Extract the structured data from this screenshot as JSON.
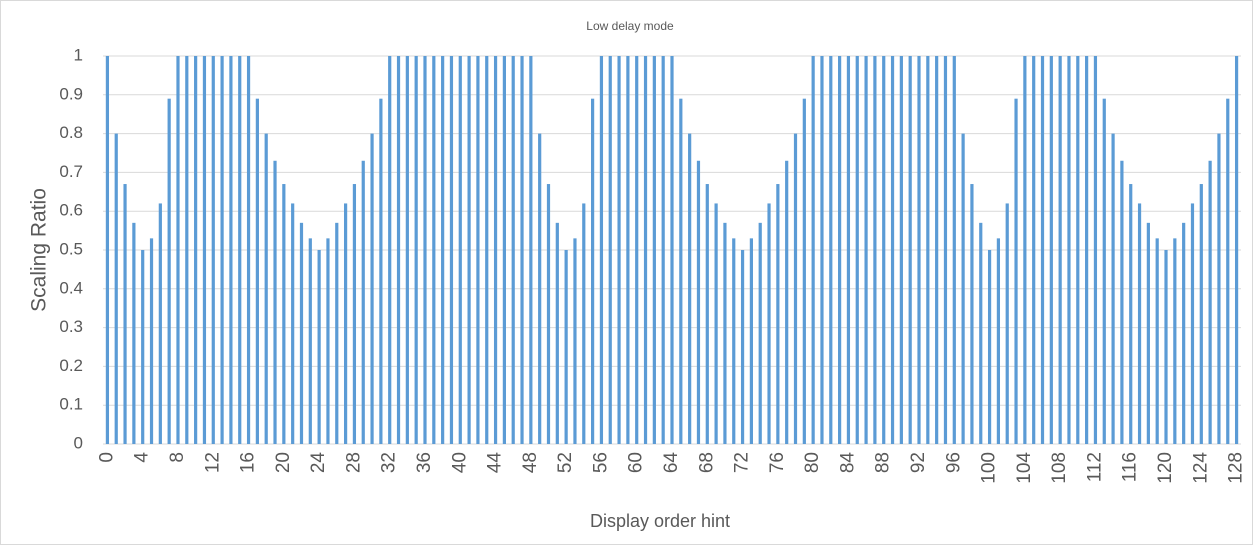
{
  "chart_data": {
    "type": "bar",
    "title": "Low delay mode",
    "x_label": "Display order hint",
    "y_label": "Scaling Ratio",
    "categories": [
      "0",
      null,
      null,
      null,
      "4",
      null,
      null,
      null,
      "8",
      null,
      null,
      null,
      "12",
      null,
      null,
      null,
      "16",
      null,
      null,
      null,
      "20",
      null,
      null,
      null,
      "24",
      null,
      null,
      null,
      "28",
      null,
      null,
      null,
      "32",
      null,
      null,
      null,
      "36",
      null,
      null,
      null,
      "40",
      null,
      null,
      null,
      "44",
      null,
      null,
      null,
      "48",
      null,
      null,
      null,
      "52",
      null,
      null,
      null,
      "56",
      null,
      null,
      null,
      "60",
      null,
      null,
      null,
      "64",
      null,
      null,
      null,
      "68",
      null,
      null,
      null,
      "72",
      null,
      null,
      null,
      "76",
      null,
      null,
      null,
      "80",
      null,
      null,
      null,
      "84",
      null,
      null,
      null,
      "88",
      null,
      null,
      null,
      "92",
      null,
      null,
      null,
      "96",
      null,
      null,
      null,
      "100",
      null,
      null,
      null,
      "104",
      null,
      null,
      null,
      "108",
      null,
      null,
      null,
      "112",
      null,
      null,
      null,
      "116",
      null,
      null,
      null,
      "120",
      null,
      null,
      null,
      "124",
      null,
      null,
      null,
      "128"
    ],
    "values": [
      1,
      0.8,
      0.67,
      0.57,
      0.5,
      0.53,
      0.62,
      0.89,
      1,
      1,
      1,
      1,
      1,
      1,
      1,
      1,
      1,
      0.89,
      0.8,
      0.73,
      0.67,
      0.62,
      0.57,
      0.53,
      0.5,
      0.53,
      0.57,
      0.62,
      0.67,
      0.73,
      0.8,
      0.89,
      1,
      1,
      1,
      1,
      1,
      1,
      1,
      1,
      1,
      1,
      1,
      1,
      1,
      1,
      1,
      1,
      1,
      0.8,
      0.67,
      0.57,
      0.5,
      0.53,
      0.62,
      0.89,
      1,
      1,
      1,
      1,
      1,
      1,
      1,
      1,
      1,
      0.89,
      0.8,
      0.73,
      0.67,
      0.62,
      0.57,
      0.53,
      0.5,
      0.53,
      0.57,
      0.62,
      0.67,
      0.73,
      0.8,
      0.89,
      1,
      1,
      1,
      1,
      1,
      1,
      1,
      1,
      1,
      1,
      1,
      1,
      1,
      1,
      1,
      1,
      1,
      0.8,
      0.67,
      0.57,
      0.5,
      0.53,
      0.62,
      0.89,
      1,
      1,
      1,
      1,
      1,
      1,
      1,
      1,
      1,
      0.89,
      0.8,
      0.73,
      0.67,
      0.62,
      0.57,
      0.53,
      0.5,
      0.53,
      0.57,
      0.62,
      0.67,
      0.73,
      0.8,
      0.89,
      1
    ],
    "color": "#5b9bd5",
    "ylim": [
      0,
      1
    ],
    "yticks": [
      0,
      0.1,
      0.2,
      0.3,
      0.4,
      0.5,
      0.6,
      0.7,
      0.8,
      0.9,
      1
    ],
    "grid": true
  }
}
